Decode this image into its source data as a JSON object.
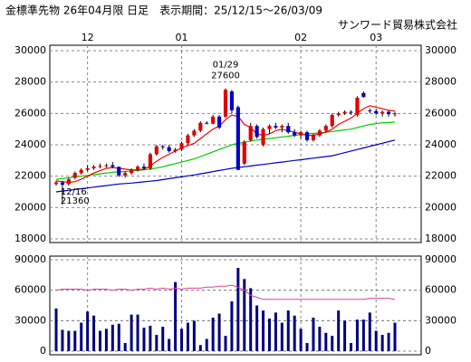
{
  "header": {
    "title": "金標準先物 26年04月限 日足　表示期間：25/12/15～26/03/09",
    "company": "サンワード貿易株式会社"
  },
  "chart_data": [
    {
      "type": "candlestick",
      "categories": [
        null,
        null,
        null,
        null,
        null,
        "12",
        null,
        null,
        null,
        null,
        null,
        null,
        null,
        null,
        null,
        null,
        null,
        null,
        null,
        null,
        "01",
        null,
        null,
        null,
        null,
        null,
        null,
        null,
        null,
        null,
        null,
        null,
        null,
        null,
        null,
        null,
        null,
        null,
        null,
        "02",
        null,
        null,
        null,
        null,
        null,
        null,
        null,
        null,
        null,
        null,
        null,
        "03",
        null,
        null,
        null
      ],
      "ohlc": [
        [
          21500,
          21700,
          21400,
          21600
        ],
        [
          21600,
          21700,
          21360,
          21450
        ],
        [
          21500,
          21900,
          21400,
          21800
        ],
        [
          21900,
          22300,
          21800,
          22200
        ],
        [
          22200,
          22500,
          22100,
          22400
        ],
        [
          22400,
          22700,
          22300,
          22500
        ],
        [
          22500,
          22700,
          22400,
          22600
        ],
        [
          22600,
          22800,
          22500,
          22650
        ],
        [
          22650,
          22800,
          22550,
          22700
        ],
        [
          22700,
          22900,
          22500,
          22600
        ],
        [
          22600,
          22600,
          21950,
          22050
        ],
        [
          22050,
          22300,
          21900,
          22200
        ],
        [
          22200,
          22500,
          22100,
          22400
        ],
        [
          22400,
          22700,
          22300,
          22600
        ],
        [
          22600,
          22800,
          22400,
          22500
        ],
        [
          22500,
          23500,
          22400,
          23400
        ],
        [
          23400,
          24000,
          23300,
          23900
        ],
        [
          23900,
          24000,
          23700,
          23850
        ],
        [
          23850,
          24000,
          23500,
          23600
        ],
        [
          23600,
          23800,
          23500,
          23700
        ],
        [
          23700,
          24200,
          23600,
          24100
        ],
        [
          24100,
          24700,
          24000,
          24600
        ],
        [
          24600,
          25000,
          24500,
          24900
        ],
        [
          24900,
          25500,
          24800,
          25400
        ],
        [
          25400,
          25500,
          25300,
          25350
        ],
        [
          25350,
          25900,
          25300,
          25800
        ],
        [
          25800,
          25900,
          25000,
          25100
        ],
        [
          25800,
          27600,
          25700,
          27500
        ],
        [
          27400,
          27500,
          26000,
          26200
        ],
        [
          26400,
          26500,
          22400,
          22400
        ],
        [
          22800,
          24300,
          22700,
          24200
        ],
        [
          24300,
          25400,
          24200,
          25200
        ],
        [
          25200,
          25300,
          24400,
          24500
        ],
        [
          24000,
          25100,
          23900,
          25000
        ],
        [
          25000,
          25300,
          24700,
          25200
        ],
        [
          25200,
          25400,
          25000,
          25100
        ],
        [
          25100,
          25300,
          24800,
          25200
        ],
        [
          25200,
          25400,
          24700,
          24800
        ],
        [
          24800,
          25000,
          24500,
          24600
        ],
        [
          24600,
          24900,
          24400,
          24800
        ],
        [
          24800,
          24900,
          24200,
          24300
        ],
        [
          24300,
          24700,
          24200,
          24600
        ],
        [
          24600,
          25000,
          24500,
          24900
        ],
        [
          24900,
          25300,
          24800,
          25200
        ],
        [
          25200,
          26000,
          25100,
          25900
        ],
        [
          25900,
          26100,
          25800,
          26000
        ],
        [
          26000,
          26200,
          25900,
          26100
        ],
        [
          26100,
          26200,
          25900,
          26050
        ],
        [
          25900,
          27100,
          25800,
          27000
        ],
        [
          27300,
          27400,
          27000,
          27050
        ],
        [
          26200,
          26300,
          26000,
          26150
        ],
        [
          26150,
          26300,
          25900,
          26000
        ],
        [
          26000,
          26200,
          25800,
          26100
        ],
        [
          26100,
          26200,
          25800,
          25950
        ],
        [
          25950,
          26100,
          25800,
          26000
        ]
      ],
      "up_color": "#e00000",
      "down_color": "#0000c8",
      "series": [
        {
          "color": "#ff0000",
          "values": [
            21700,
            21650,
            21600,
            21650,
            21800,
            22000,
            22200,
            22350,
            22500,
            22550,
            22500,
            22450,
            22400,
            22400,
            22450,
            22650,
            22950,
            23200,
            23400,
            23600,
            23800,
            23950,
            24100,
            24400,
            24700,
            25000,
            25200,
            25600,
            25900,
            25800,
            25300,
            25100,
            24700,
            24600,
            24700,
            24900,
            25000,
            24900,
            24800,
            24700,
            24600,
            24600,
            24700,
            24800,
            25000,
            25300,
            25500,
            25700,
            26000,
            26300,
            26500,
            26400,
            26300,
            26200,
            26150
          ]
        },
        {
          "color": "#00cc00",
          "values": [
            21800,
            21850,
            21900,
            21950,
            22000,
            22050,
            22100,
            22150,
            22200,
            22250,
            22280,
            22300,
            22330,
            22360,
            22400,
            22450,
            22520,
            22600,
            22700,
            22800,
            22900,
            23000,
            23100,
            23250,
            23400,
            23550,
            23700,
            23850,
            24000,
            24100,
            24150,
            24250,
            24300,
            24350,
            24400,
            24450,
            24500,
            24550,
            24600,
            24650,
            24700,
            24720,
            24750,
            24800,
            24850,
            24900,
            24950,
            25000,
            25100,
            25200,
            25300,
            25350,
            25400,
            25420,
            25450
          ]
        },
        {
          "color": "#0000cc",
          "values": [
            21000,
            21050,
            21100,
            21150,
            21200,
            21250,
            21300,
            21350,
            21400,
            21450,
            21500,
            21530,
            21560,
            21600,
            21640,
            21680,
            21720,
            21780,
            21840,
            21900,
            21960,
            22020,
            22080,
            22150,
            22220,
            22290,
            22360,
            22430,
            22500,
            22550,
            22600,
            22650,
            22700,
            22750,
            22800,
            22850,
            22900,
            22950,
            23000,
            23050,
            23100,
            23150,
            23200,
            23250,
            23300,
            23400,
            23500,
            23600,
            23700,
            23800,
            23900,
            24000,
            24100,
            24200,
            24300
          ]
        }
      ],
      "annotations": [
        {
          "date": "01/29",
          "value": 27600
        },
        {
          "date": "12/16",
          "value": 21360
        }
      ],
      "ylim": [
        18000,
        30000
      ],
      "yticks": [
        18000,
        20000,
        22000,
        24000,
        26000,
        28000,
        30000
      ],
      "grid": true
    },
    {
      "type": "bar_line",
      "series": [
        {
          "color": "#000080",
          "values": [
            42000,
            21000,
            20000,
            20000,
            28000,
            39000,
            35000,
            20000,
            22000,
            26000,
            27000,
            8000,
            36000,
            36000,
            23000,
            25000,
            16000,
            24000,
            12000,
            68000,
            22000,
            28000,
            30000,
            6000,
            12000,
            33000,
            37000,
            15000,
            49000,
            82000,
            71000,
            62000,
            45000,
            40000,
            32000,
            38000,
            28000,
            40000,
            35000,
            22000,
            8000,
            33000,
            24000,
            18000,
            15000,
            40000,
            30000,
            8000,
            31000,
            31000,
            38000,
            20000,
            16000,
            18000,
            28000
          ]
        },
        {
          "color": "#e0409a",
          "axis": "y2",
          "values": [
            60000,
            61000,
            61000,
            61000,
            61000,
            60000,
            61000,
            61000,
            61000,
            60000,
            61000,
            61000,
            60000,
            61000,
            61000,
            62000,
            61000,
            62000,
            61000,
            62000,
            61000,
            62000,
            62000,
            62000,
            63000,
            63000,
            64000,
            64000,
            65000,
            63000,
            60000,
            55000,
            53000,
            51000,
            51000,
            51000,
            51000,
            51000,
            51000,
            51000,
            51000,
            51000,
            51000,
            51000,
            51000,
            51000,
            51000,
            51000,
            51000,
            51000,
            52000,
            52000,
            52000,
            52000,
            51000
          ]
        }
      ],
      "ylim": [
        0,
        90000
      ],
      "yticks": [
        0,
        30000,
        60000,
        90000
      ],
      "y2lim": [
        0,
        90000
      ],
      "y2ticks": [
        0,
        30000,
        60000,
        90000
      ],
      "grid": true
    }
  ]
}
